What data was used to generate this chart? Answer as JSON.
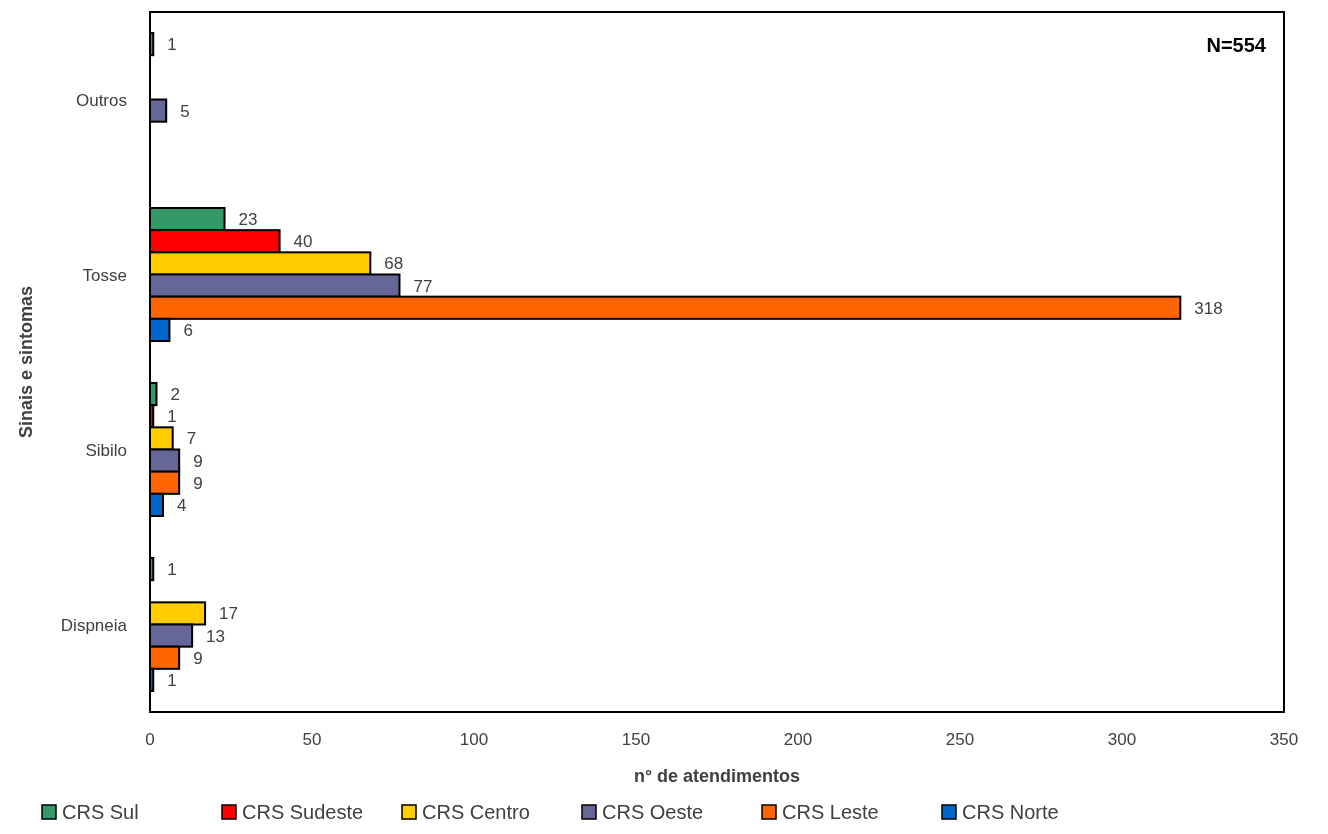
{
  "chart_data": {
    "type": "bar",
    "orientation": "horizontal",
    "xlabel": "n° de atendimentos",
    "ylabel": "Sinais e sintomas",
    "categories": [
      "Outros",
      "Tosse",
      "Sibilo",
      "Dispneia"
    ],
    "series": [
      {
        "name": "CRS Sul",
        "color": "#339966",
        "values": [
          1,
          23,
          2,
          1
        ]
      },
      {
        "name": "CRS Sudeste",
        "color": "#ff0000",
        "values": [
          null,
          40,
          1,
          null
        ]
      },
      {
        "name": "CRS Centro",
        "color": "#ffcc00",
        "values": [
          null,
          68,
          7,
          17
        ]
      },
      {
        "name": "CRS Oeste",
        "color": "#666699",
        "values": [
          5,
          77,
          9,
          13
        ]
      },
      {
        "name": "CRS Leste",
        "color": "#ff6600",
        "values": [
          null,
          318,
          9,
          9
        ]
      },
      {
        "name": "CRS Norte",
        "color": "#0066cc",
        "values": [
          null,
          6,
          4,
          1
        ]
      }
    ],
    "xlim": [
      0,
      350
    ],
    "xticks": [
      0,
      50,
      100,
      150,
      200,
      250,
      300,
      350
    ],
    "data_labels": true,
    "legend": "bottom",
    "grid": false,
    "annotations": [
      "N=554"
    ]
  }
}
